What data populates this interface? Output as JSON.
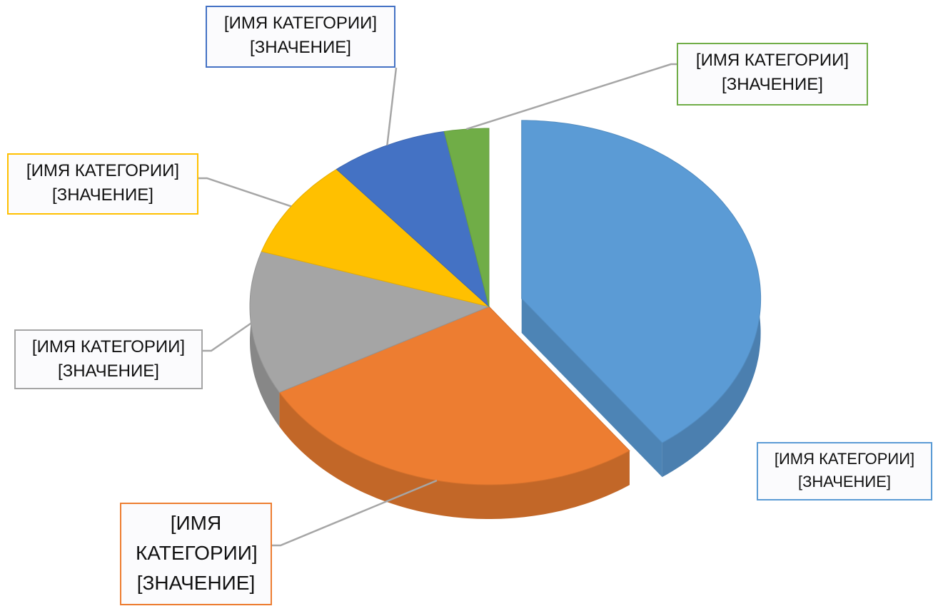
{
  "chart_data": {
    "type": "pie3d",
    "categories": [
      "[ИМЯ КАТЕГОРИИ]",
      "[ИМЯ КАТЕГОРИИ]",
      "[ИМЯ КАТЕГОРИИ]",
      "[ИМЯ КАТЕГОРИИ]",
      "[ИМЯ КАТЕГОРИИ]",
      "[ИМЯ КАТЕГОРИИ]"
    ],
    "values": [
      40,
      27,
      13,
      9,
      8,
      3
    ],
    "value_labels": [
      "[ЗНАЧЕНИЕ]",
      "[ЗНАЧЕНИЕ]",
      "[ЗНАЧЕНИЕ]",
      "[ЗНАЧЕНИЕ]",
      "[ЗНАЧЕНИЕ]",
      "[ЗНАЧЕНИЕ]"
    ],
    "colors": [
      "#5b9bd5",
      "#ed7d31",
      "#a5a5a5",
      "#ffc000",
      "#4472c4",
      "#70ad47"
    ],
    "exploded": [
      true,
      false,
      false,
      false,
      false,
      false
    ]
  }
}
